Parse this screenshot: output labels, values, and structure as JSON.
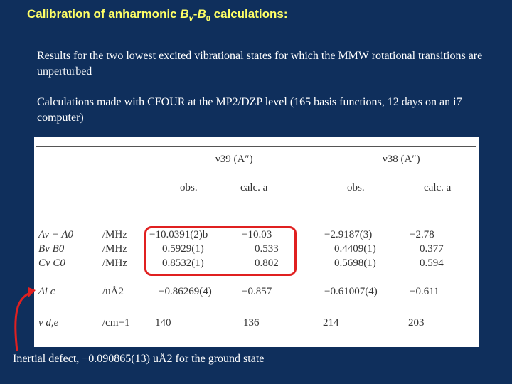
{
  "title": {
    "pre": "Calibration of anharmonic ",
    "b": "B",
    "v": "v",
    "dash": "-",
    "b0": "B",
    "zero": "0",
    "post": " calculations:"
  },
  "paragraphs": [
    "Results for the two lowest excited vibrational states for which the MMW rotational transitions are unperturbed",
    "Calculations made with CFOUR at the MP2/DZP level (165 basis functions, 12 days on an i7 computer)"
  ],
  "table": {
    "group1": "ν39  (A″)",
    "group2": "ν38  (A″)",
    "col_headers": [
      "obs.",
      "calc. a",
      "obs.",
      "calc. a"
    ],
    "rows": [
      {
        "sym": "Av  −  A0",
        "unit": "/MHz",
        "v": [
          "−10.0391(2)b",
          "−10.03",
          "−2.9187(3)",
          "−2.78"
        ]
      },
      {
        "sym": "Bv      B0",
        "unit": "/MHz",
        "v": [
          "0.5929(1)",
          "0.533",
          "0.4409(1)",
          "0.377"
        ]
      },
      {
        "sym": "Cv      C0",
        "unit": "/MHz",
        "v": [
          "0.8532(1)",
          "0.802",
          "0.5698(1)",
          "0.594"
        ]
      },
      {
        "sym": "Δi c",
        "unit": "/uÅ2",
        "v": [
          "−0.86269(4)",
          "−0.857",
          "−0.61007(4)",
          "−0.611"
        ]
      },
      {
        "sym": "ν d,e",
        "unit": "/cm−1",
        "v": [
          "140",
          "136",
          "214",
          "203"
        ]
      }
    ]
  },
  "caption": "Inertial defect, −0.090865(13) uÅ2 for the ground state",
  "colors": {
    "background": "#0f2f5c",
    "title": "#ffff66",
    "highlight": "#e02020"
  }
}
